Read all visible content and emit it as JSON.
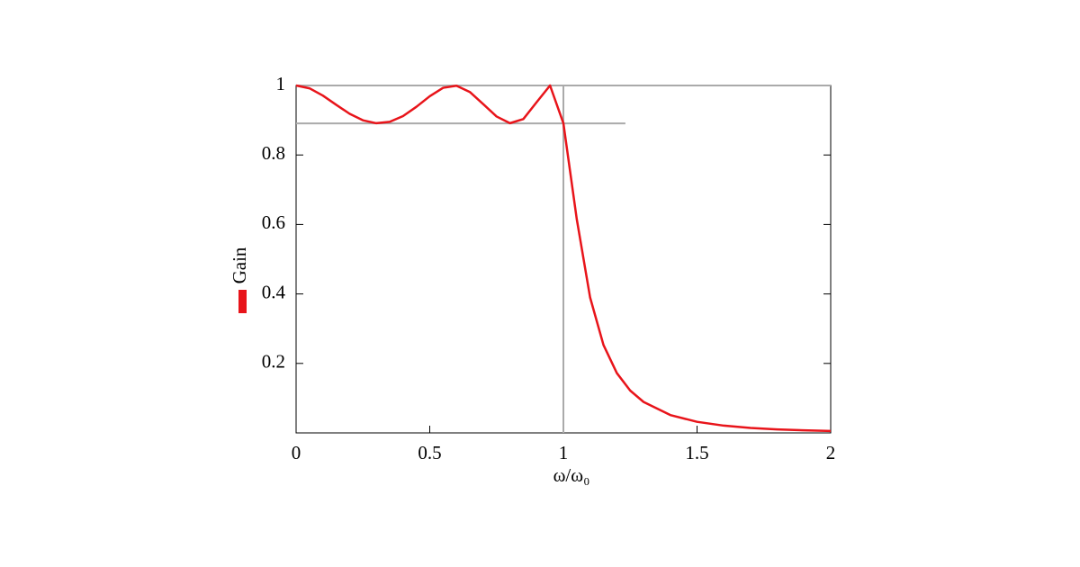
{
  "chart_data": {
    "type": "line",
    "x_label": "ω/ω₀",
    "y_label": "Gain",
    "x": [
      0,
      0.05,
      0.1,
      0.15,
      0.2,
      0.25,
      0.3,
      0.35,
      0.4,
      0.45,
      0.5,
      0.55,
      0.6,
      0.65,
      0.7,
      0.75,
      0.8,
      0.85,
      0.9,
      0.95,
      1.0,
      1.05,
      1.1,
      1.15,
      1.2,
      1.25,
      1.3,
      1.4,
      1.5,
      1.6,
      1.7,
      1.8,
      1.9,
      2.0
    ],
    "series": [
      {
        "color": "#e8141a",
        "values": [
          1,
          0.992,
          0.971,
          0.9445,
          0.9187,
          0.8998,
          0.8914,
          0.8955,
          0.912,
          0.9386,
          0.9691,
          0.9934,
          0.9993,
          0.9813,
          0.9464,
          0.9108,
          0.8915,
          0.9033,
          0.952,
          1.0,
          0.8913,
          0.6153,
          0.3895,
          0.253,
          0.1721,
          0.1218,
          0.0891,
          0.0514,
          0.0319,
          0.0209,
          0.0143,
          0.0101,
          0.0073,
          0.0054
        ]
      }
    ],
    "xlim": [
      0,
      2
    ],
    "ylim": [
      0,
      1
    ],
    "xticks": [
      0,
      0.5,
      1,
      1.5,
      2
    ],
    "yticks": [
      0.2,
      0.4,
      0.6,
      0.8,
      1
    ],
    "reference_lines": [
      {
        "y": 1,
        "x_range": [
          0,
          2
        ]
      },
      {
        "y": 0.891,
        "x_range": [
          0,
          1.232
        ]
      },
      {
        "x": 1,
        "y_range": [
          0,
          1
        ]
      }
    ],
    "reference_color": "#aaaaaa"
  }
}
